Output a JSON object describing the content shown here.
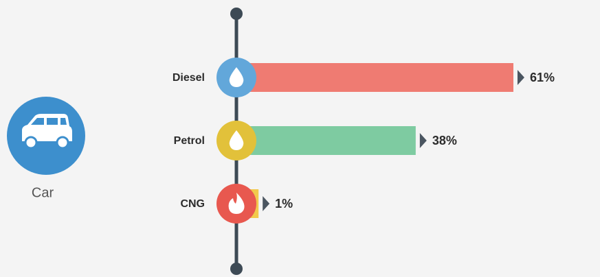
{
  "chart_data": {
    "type": "bar",
    "orientation": "horizontal",
    "subject": "Car",
    "categories": [
      "Diesel",
      "Petrol",
      "CNG"
    ],
    "values": [
      61,
      38,
      1
    ],
    "value_labels": [
      "61%",
      "38%",
      "1%"
    ],
    "colors": [
      "#ef7b72",
      "#7ecba1",
      "#f2c94c"
    ],
    "icon_colors": [
      "#62a7da",
      "#e2c13a",
      "#e8584f"
    ]
  }
}
